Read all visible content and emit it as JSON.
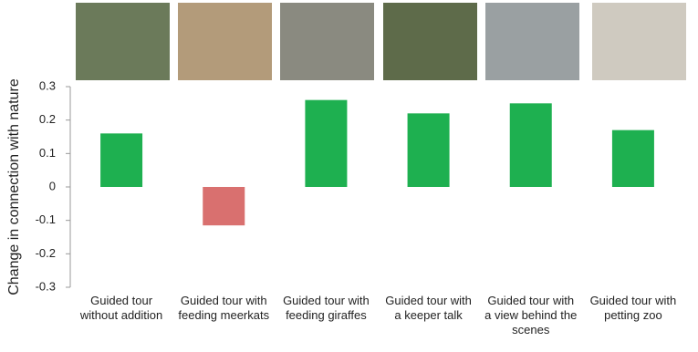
{
  "chart_data": {
    "type": "bar",
    "y_label": "Change in connection with nature",
    "categories": [
      "Guided tour without addition",
      "Guided tour with feeding meerkats",
      "Guided tour with feeding giraffes",
      "Guided tour with a keeper talk",
      "Guided tour with a view behind the scenes",
      "Guided tour with petting zoo"
    ],
    "values": [
      0.16,
      -0.115,
      0.26,
      0.22,
      0.25,
      0.17
    ],
    "colors": [
      "#1eb050",
      "#d9706f",
      "#1eb050",
      "#1eb050",
      "#1eb050",
      "#1eb050"
    ],
    "ylim": [
      -0.3,
      0.3
    ],
    "yticks": [
      -0.3,
      -0.2,
      -0.1,
      0,
      0.1,
      0.2,
      0.3
    ],
    "grid": false
  }
}
